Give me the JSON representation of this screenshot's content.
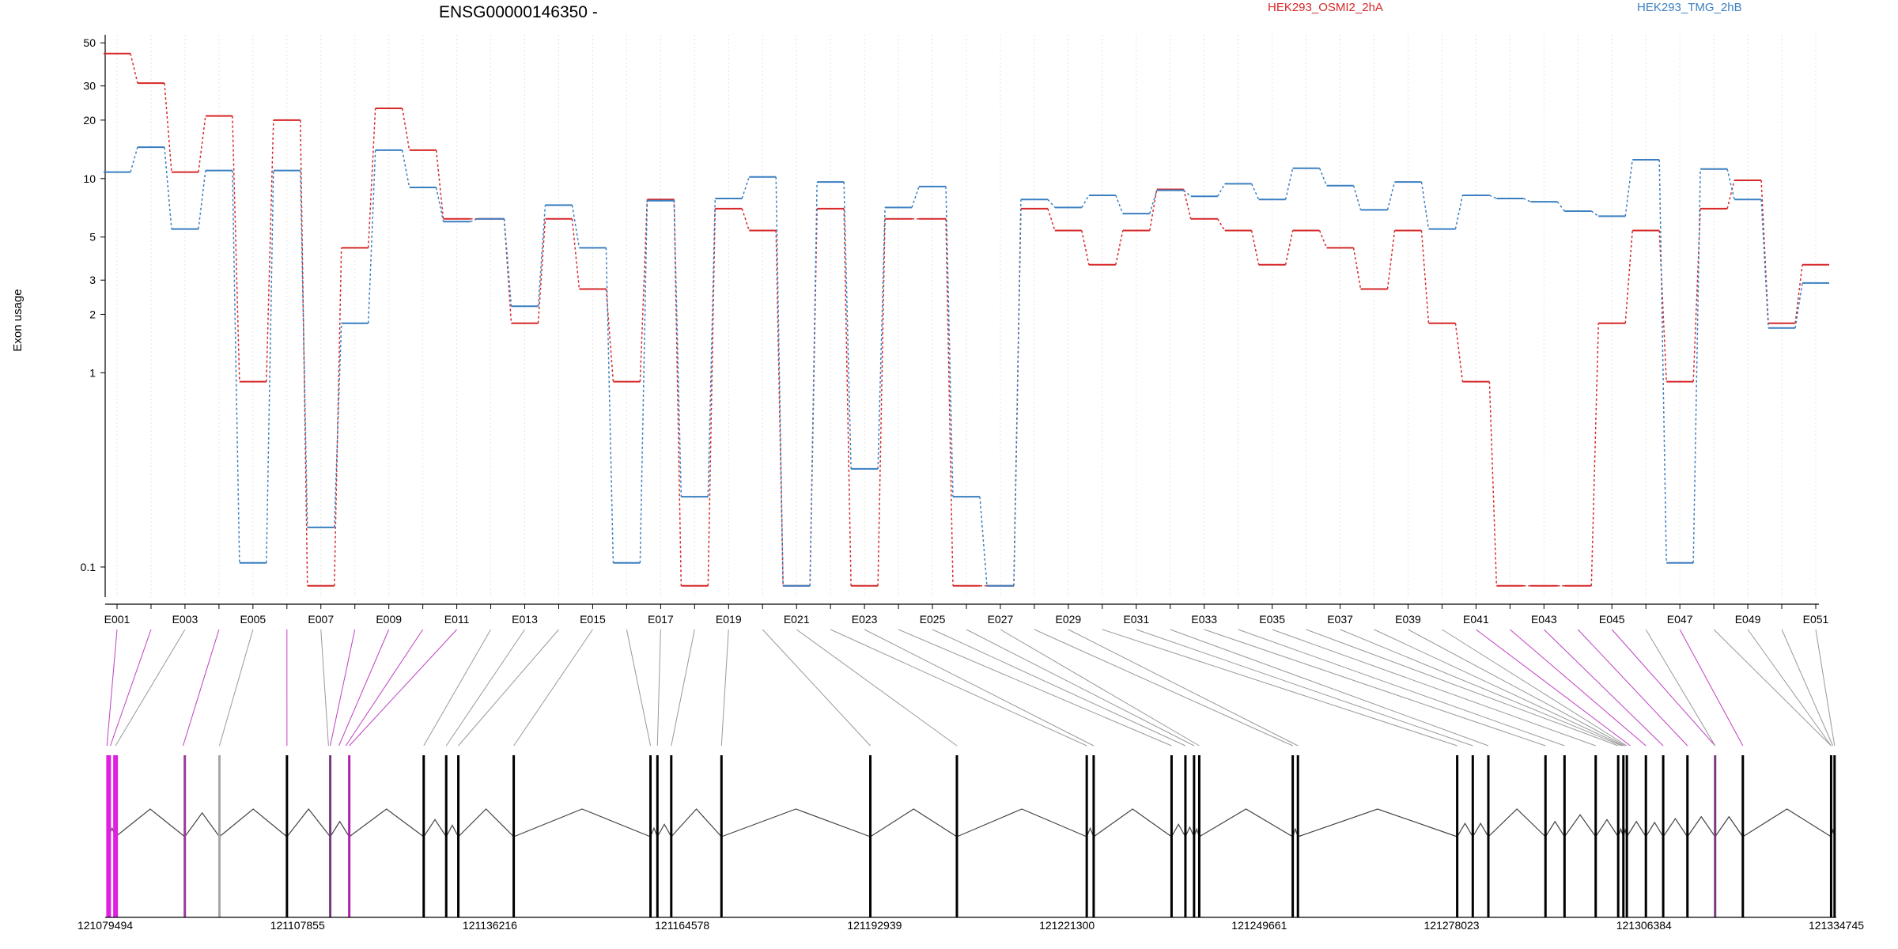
{
  "chart_data": {
    "type": "line",
    "title": "ENSG00000146350 -",
    "ylabel": "Exon usage",
    "xlabel": "",
    "yscale": "log",
    "ylim": [
      0.07,
      55
    ],
    "yticks": [
      "50",
      "30",
      "20",
      "10",
      "5",
      "3",
      "2",
      "1",
      "0.1"
    ],
    "grid": "vertical dotted lines at each exon",
    "legend_placement": "top",
    "x": [
      "E001",
      "E002",
      "E003",
      "E004",
      "E005",
      "E006",
      "E007",
      "E008",
      "E009",
      "E010",
      "E011",
      "E012",
      "E013",
      "E014",
      "E015",
      "E016",
      "E017",
      "E018",
      "E019",
      "E020",
      "E021",
      "E022",
      "E023",
      "E024",
      "E025",
      "E026",
      "E027",
      "E028",
      "E029",
      "E030",
      "E031",
      "E032",
      "E033",
      "E034",
      "E035",
      "E036",
      "E037",
      "E038",
      "E039",
      "E040",
      "E041",
      "E042",
      "E043",
      "E044",
      "E045",
      "E046",
      "E047",
      "E048",
      "E049",
      "E050",
      "E051"
    ],
    "x_tick_labels": [
      "E001",
      "E003",
      "E005",
      "E007",
      "E009",
      "E011",
      "E013",
      "E015",
      "E017",
      "E019",
      "E021",
      "E023",
      "E025",
      "E027",
      "E029",
      "E031",
      "E033",
      "E035",
      "E037",
      "E039",
      "E041",
      "E043",
      "E045",
      "E047",
      "E049",
      "E051"
    ],
    "series": [
      {
        "name": "HEK293_OSMI2_2hA",
        "color": "#d62728",
        "values": [
          44,
          31,
          10.8,
          21,
          0.9,
          20,
          0.08,
          4.4,
          23,
          14,
          6.2,
          6.2,
          1.8,
          6.2,
          2.7,
          0.9,
          7.8,
          0.08,
          7,
          5.4,
          0.08,
          7,
          0.08,
          6.2,
          6.2,
          0.08,
          0.08,
          7,
          5.4,
          3.6,
          5.4,
          8.8,
          6.2,
          5.4,
          3.6,
          5.4,
          4.4,
          2.7,
          5.4,
          1.8,
          0.9,
          0.08,
          0.08,
          0.08,
          1.8,
          5.4,
          0.9,
          7,
          9.8,
          1.8,
          3.6
        ]
      },
      {
        "name": "HEK293_TMG_2hB",
        "color": "#3a7fc1",
        "values": [
          10.8,
          14.5,
          5.5,
          11,
          0.105,
          11,
          0.16,
          1.8,
          14,
          9,
          6,
          6.2,
          2.2,
          7.3,
          4.4,
          0.105,
          7.7,
          0.23,
          7.9,
          10.2,
          0.08,
          9.6,
          0.32,
          7.1,
          9.1,
          0.23,
          0.08,
          7.8,
          7.1,
          8.2,
          6.6,
          8.7,
          8.1,
          9.4,
          7.8,
          11.3,
          9.2,
          6.9,
          9.6,
          5.5,
          8.2,
          7.9,
          7.6,
          6.8,
          6.4,
          12.5,
          0.105,
          11.2,
          7.8,
          1.7,
          2.9
        ]
      }
    ],
    "genomic_axis_labels": [
      "121079494",
      "121107855",
      "121136216",
      "121164578",
      "121192939",
      "121221300",
      "121249661",
      "121278023",
      "121306384",
      "121334745"
    ],
    "gene_model_exons": [
      {
        "pos": 0.002,
        "color": "#e020e0"
      },
      {
        "pos": 0.006,
        "color": "#e020e0"
      },
      {
        "pos": 0.046,
        "color": "#9a3a9a"
      },
      {
        "pos": 0.066,
        "color": "#a6a6a6"
      },
      {
        "pos": 0.105,
        "color": "#000000"
      },
      {
        "pos": 0.13,
        "color": "#7a3a7a"
      },
      {
        "pos": 0.141,
        "color": "#b020b0"
      },
      {
        "pos": 0.184,
        "color": "#000000"
      },
      {
        "pos": 0.197,
        "color": "#000000"
      },
      {
        "pos": 0.204,
        "color": "#000000"
      },
      {
        "pos": 0.236,
        "color": "#000000"
      },
      {
        "pos": 0.315,
        "color": "#000000"
      },
      {
        "pos": 0.319,
        "color": "#000000"
      },
      {
        "pos": 0.327,
        "color": "#000000"
      },
      {
        "pos": 0.356,
        "color": "#000000"
      },
      {
        "pos": 0.442,
        "color": "#000000"
      },
      {
        "pos": 0.492,
        "color": "#000000"
      },
      {
        "pos": 0.567,
        "color": "#000000"
      },
      {
        "pos": 0.571,
        "color": "#000000"
      },
      {
        "pos": 0.616,
        "color": "#000000"
      },
      {
        "pos": 0.624,
        "color": "#000000"
      },
      {
        "pos": 0.629,
        "color": "#000000"
      },
      {
        "pos": 0.632,
        "color": "#000000"
      },
      {
        "pos": 0.686,
        "color": "#000000"
      },
      {
        "pos": 0.689,
        "color": "#000000"
      },
      {
        "pos": 0.781,
        "color": "#000000"
      },
      {
        "pos": 0.79,
        "color": "#000000"
      },
      {
        "pos": 0.799,
        "color": "#000000"
      },
      {
        "pos": 0.832,
        "color": "#000000"
      },
      {
        "pos": 0.843,
        "color": "#000000"
      },
      {
        "pos": 0.861,
        "color": "#000000"
      },
      {
        "pos": 0.874,
        "color": "#000000"
      },
      {
        "pos": 0.877,
        "color": "#000000"
      },
      {
        "pos": 0.879,
        "color": "#000000"
      },
      {
        "pos": 0.89,
        "color": "#000000"
      },
      {
        "pos": 0.9,
        "color": "#000000"
      },
      {
        "pos": 0.914,
        "color": "#000000"
      },
      {
        "pos": 0.93,
        "color": "#7a3a7a"
      },
      {
        "pos": 0.946,
        "color": "#000000"
      },
      {
        "pos": 0.997,
        "color": "#000000"
      },
      {
        "pos": 0.999,
        "color": "#000000"
      }
    ],
    "exon_to_model_map": [
      0.001,
      0.003,
      0.006,
      0.045,
      0.066,
      0.105,
      0.129,
      0.13,
      0.135,
      0.139,
      0.141,
      0.184,
      0.197,
      0.204,
      0.236,
      0.315,
      0.319,
      0.327,
      0.356,
      0.442,
      0.492,
      0.567,
      0.571,
      0.616,
      0.624,
      0.629,
      0.632,
      0.686,
      0.689,
      0.781,
      0.79,
      0.799,
      0.832,
      0.843,
      0.861,
      0.874,
      0.876,
      0.877,
      0.878,
      0.879,
      0.881,
      0.89,
      0.9,
      0.914,
      0.93,
      0.93,
      0.946,
      0.997,
      0.997,
      0.998,
      0.999
    ],
    "exon_map_highlight": [
      true,
      true,
      false,
      true,
      false,
      true,
      false,
      true,
      true,
      true,
      true,
      false,
      false,
      false,
      false,
      false,
      false,
      false,
      false,
      false,
      false,
      false,
      false,
      false,
      false,
      false,
      false,
      false,
      false,
      false,
      false,
      false,
      false,
      false,
      false,
      false,
      false,
      false,
      false,
      false,
      true,
      true,
      true,
      true,
      true,
      false,
      true,
      false,
      false,
      false,
      false
    ]
  }
}
